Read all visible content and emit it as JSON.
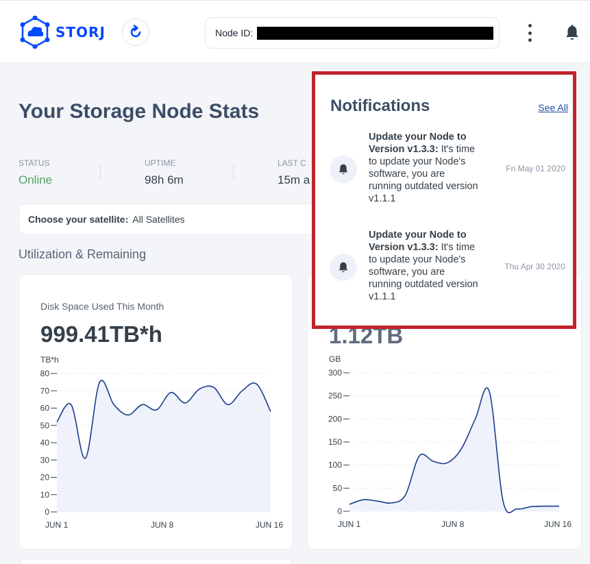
{
  "header": {
    "logo_text": "STORJ",
    "node_id_label": "Node ID:",
    "node_id_value": ""
  },
  "page_title": "Your Storage Node Stats",
  "stats": {
    "status_label": "STATUS",
    "status_value": "Online",
    "uptime_label": "UPTIME",
    "uptime_value": "98h 6m",
    "last_label": "LAST C",
    "last_value": "15m a"
  },
  "satellite": {
    "label": "Choose your satellite:",
    "value": "All Satellites"
  },
  "section_title": "Utilization & Remaining",
  "disk_card": {
    "subtitle": "Disk Space Used This Month",
    "big_value": "999.41TB*h",
    "unit": "TB*h"
  },
  "bandwidth_card": {
    "big_value": "1.12TB",
    "unit": "GB"
  },
  "notifications": {
    "title": "Notifications",
    "see_all": "See All",
    "items": [
      {
        "title": "Update your Node to Version v1.3.3:",
        "body": "It's time to update your Node's software, you are running outdated version v1.1.1",
        "date": "Fri May 01 2020"
      },
      {
        "title": "Update your Node to Version v1.3.3:",
        "body": "It's time to update your Node's software, you are running outdated version v1.1.1",
        "date": "Thu Apr 30 2020"
      }
    ]
  },
  "colors": {
    "brand": "#0149ff",
    "online": "#519e62",
    "chart_line": "#1a3a8c",
    "chart_fill": "#eff2fb",
    "highlight": "#c0232c"
  },
  "chart_data": [
    {
      "type": "area",
      "ylabel": "TB*h",
      "ylim": [
        0,
        80
      ],
      "yticks": [
        0,
        10,
        20,
        30,
        40,
        50,
        60,
        70,
        80
      ],
      "xticks": [
        "JUN 1",
        "JUN 8",
        "JUN 16"
      ],
      "x": [
        1,
        2,
        3,
        4,
        5,
        6,
        7,
        8,
        9,
        10,
        11,
        12,
        13,
        14,
        15,
        16
      ],
      "series": [
        {
          "values": [
            52,
            62,
            31,
            75,
            62,
            56,
            62,
            59,
            69,
            63,
            71,
            72,
            62,
            70,
            74,
            58
          ]
        }
      ]
    },
    {
      "type": "area",
      "ylabel": "GB",
      "ylim": [
        0,
        300
      ],
      "yticks": [
        0,
        50,
        100,
        150,
        200,
        250,
        300
      ],
      "xticks": [
        "JUN 1",
        "JUN 8",
        "JUN 16"
      ],
      "x": [
        1,
        2,
        3,
        4,
        5,
        6,
        7,
        8,
        9,
        10,
        11,
        12,
        13,
        14,
        15,
        16
      ],
      "series": [
        {
          "values": [
            15,
            25,
            22,
            18,
            35,
            120,
            108,
            105,
            135,
            200,
            260,
            20,
            5,
            10,
            11,
            11
          ]
        }
      ]
    }
  ]
}
